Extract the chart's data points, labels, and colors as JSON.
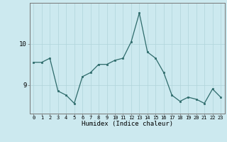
{
  "x": [
    0,
    1,
    2,
    3,
    4,
    5,
    6,
    7,
    8,
    9,
    10,
    11,
    12,
    13,
    14,
    15,
    16,
    17,
    18,
    19,
    20,
    21,
    22,
    23
  ],
  "y": [
    9.55,
    9.55,
    9.65,
    8.85,
    8.75,
    8.55,
    9.2,
    9.3,
    9.5,
    9.5,
    9.6,
    9.65,
    10.05,
    10.75,
    9.8,
    9.65,
    9.3,
    8.75,
    8.6,
    8.7,
    8.65,
    8.55,
    8.9,
    8.7
  ],
  "xlabel": "Humidex (Indice chaleur)",
  "bg_color": "#cce9ef",
  "line_color": "#2e6b6b",
  "marker_color": "#2e6b6b",
  "grid_color": "#b0d4da",
  "ytick_labels": [
    "9",
    "10"
  ],
  "ytick_vals": [
    9,
    10
  ],
  "ylim": [
    8.3,
    11.0
  ],
  "xlim": [
    -0.5,
    23.5
  ],
  "xtick_fontsize": 5.0,
  "ytick_fontsize": 6.5,
  "xlabel_fontsize": 6.5,
  "linewidth": 0.9,
  "markersize": 2.0
}
